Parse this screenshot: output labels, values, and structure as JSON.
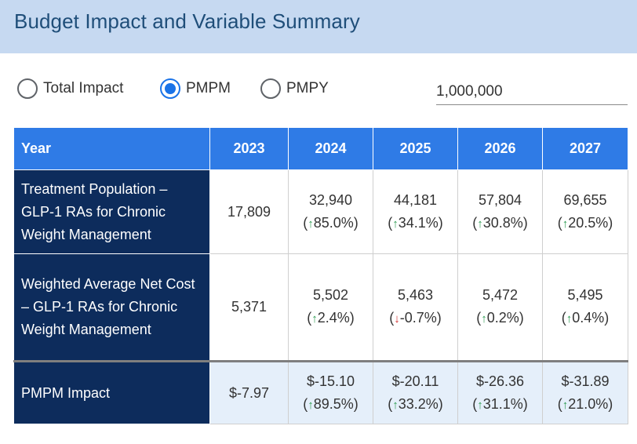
{
  "header": {
    "title": "Budget Impact and Variable Summary"
  },
  "controls": {
    "options": [
      {
        "label": "Total Impact",
        "selected": false
      },
      {
        "label": "PMPM",
        "selected": true
      },
      {
        "label": "PMPY",
        "selected": false
      }
    ],
    "population_value": "1,000,000"
  },
  "table": {
    "year_header": "Year",
    "years": [
      "2023",
      "2024",
      "2025",
      "2026",
      "2027"
    ],
    "rows": [
      {
        "label": "Treatment Population – GLP-1 RAs for Chronic Weight Management",
        "cells": [
          {
            "value": "17,809",
            "change": null,
            "dir": null
          },
          {
            "value": "32,940",
            "change": "85.0%",
            "dir": "up"
          },
          {
            "value": "44,181",
            "change": "34.1%",
            "dir": "up"
          },
          {
            "value": "57,804",
            "change": "30.8%",
            "dir": "up"
          },
          {
            "value": "69,655",
            "change": "20.5%",
            "dir": "up"
          }
        ]
      },
      {
        "label": "Weighted Average Net Cost – GLP-1 RAs for Chronic Weight Management",
        "cells": [
          {
            "value": "5,371",
            "change": null,
            "dir": null
          },
          {
            "value": "5,502",
            "change": "2.4%",
            "dir": "up"
          },
          {
            "value": "5,463",
            "change": "-0.7%",
            "dir": "down"
          },
          {
            "value": "5,472",
            "change": "0.2%",
            "dir": "up"
          },
          {
            "value": "5,495",
            "change": "0.4%",
            "dir": "up"
          }
        ]
      },
      {
        "label": "PMPM Impact",
        "cells": [
          {
            "value": "$-7.97",
            "change": null,
            "dir": null
          },
          {
            "value": "$-15.10",
            "change": "89.5%",
            "dir": "up"
          },
          {
            "value": "$-20.11",
            "change": "33.2%",
            "dir": "up"
          },
          {
            "value": "$-26.36",
            "change": "31.1%",
            "dir": "up"
          },
          {
            "value": "$-31.89",
            "change": "21.0%",
            "dir": "up"
          }
        ]
      }
    ]
  },
  "colors": {
    "header_bg": "#c6d9f1",
    "title": "#1f4e79",
    "table_header": "#2f7be6",
    "row_label_bg": "#0d2c5c",
    "impact_row_bg": "#e5effa",
    "up_arrow": "#2e9c53",
    "down_arrow": "#d32f2f",
    "radio_selected": "#1a73e8"
  },
  "icons": {
    "up": "arrow-up-icon",
    "down": "arrow-down-icon"
  }
}
